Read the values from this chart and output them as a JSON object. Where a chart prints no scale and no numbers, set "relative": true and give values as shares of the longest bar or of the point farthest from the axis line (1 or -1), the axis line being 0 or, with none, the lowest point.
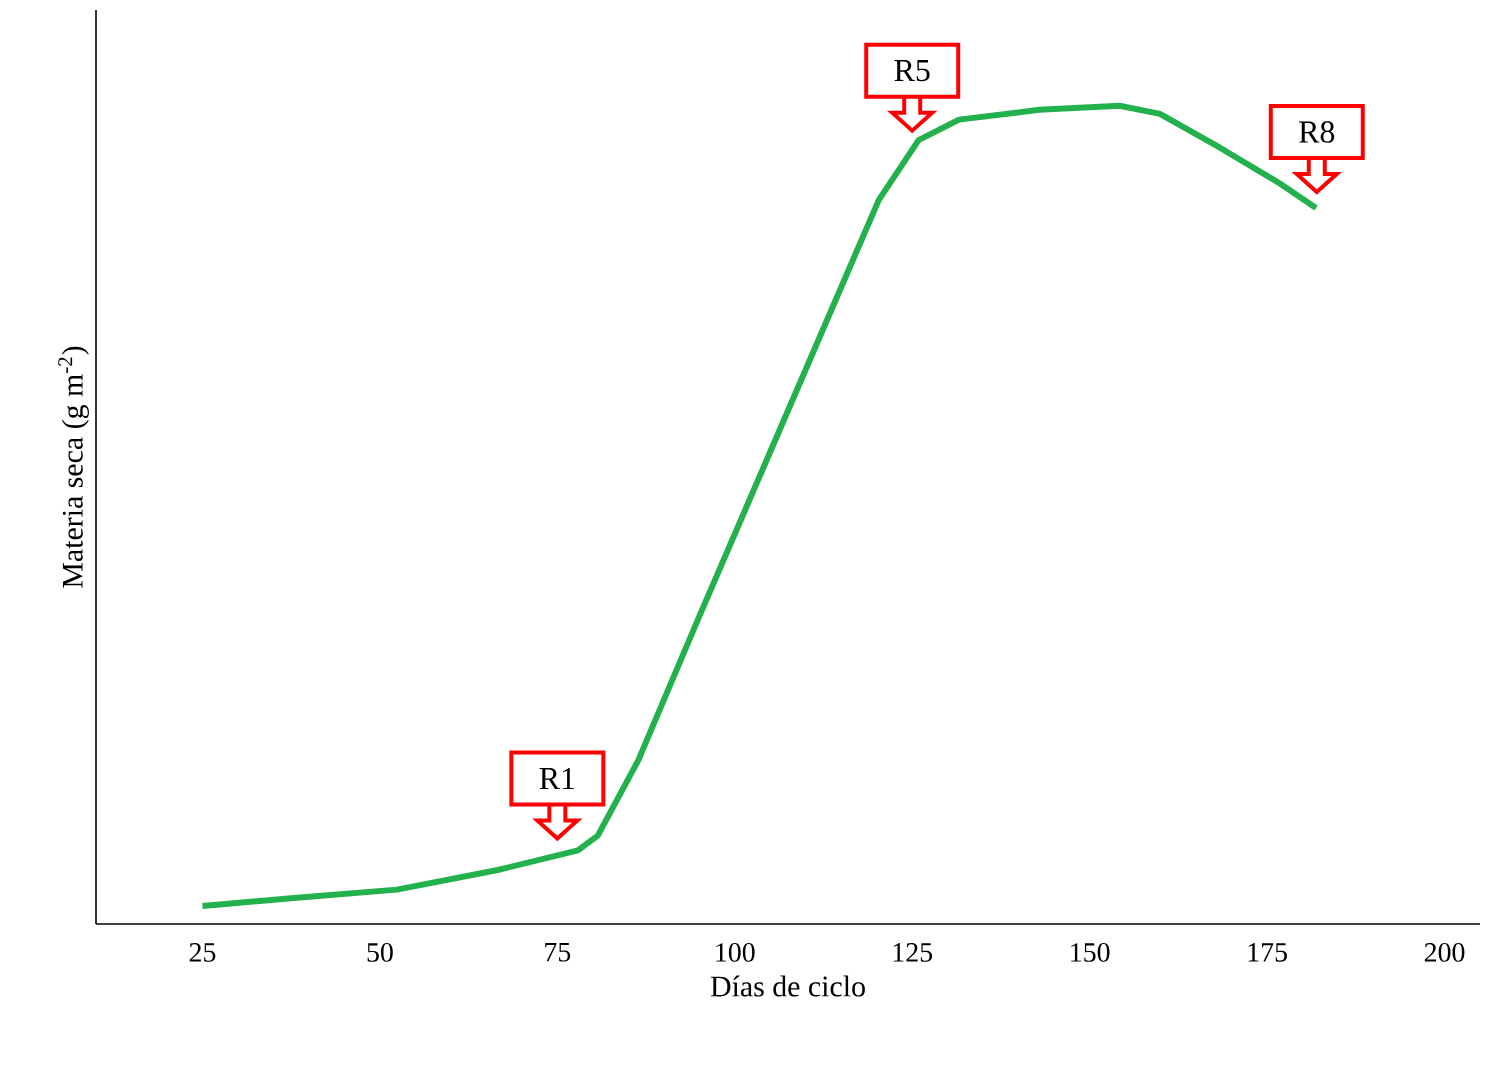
{
  "chart_data": {
    "type": "line",
    "relative": true,
    "xlabel": "Días de ciclo",
    "ylabel": "Materia seca (g m$^{-2}$)",
    "x": [
      25,
      38.3,
      52.4,
      66.6,
      77.9,
      80.7,
      86.4,
      94.8,
      103.3,
      111.8,
      120.3,
      125.9,
      131.6,
      142.9,
      154.2,
      159.9,
      168.3,
      176.8,
      181.9
    ],
    "series": [
      {
        "color": "#22b14c",
        "values": [
          0.022,
          0.032,
          0.042,
          0.066,
          0.09,
          0.108,
          0.2,
          0.372,
          0.543,
          0.714,
          0.885,
          0.958,
          0.983,
          0.995,
          1,
          0.99,
          0.949,
          0.905,
          0.875
        ]
      }
    ],
    "xlim": [
      10,
      205
    ],
    "xticks": [
      25,
      50,
      75,
      100,
      125,
      150,
      175,
      200
    ],
    "annotations": [
      {
        "text": "R1",
        "x": 75,
        "y": 0.085
      },
      {
        "text": "R5",
        "x": 125,
        "y": 0.95
      },
      {
        "text": "R8",
        "x": 182,
        "y": 0.875
      }
    ],
    "marker": "none",
    "line_style": "solid",
    "legend": false,
    "grid": false
  }
}
